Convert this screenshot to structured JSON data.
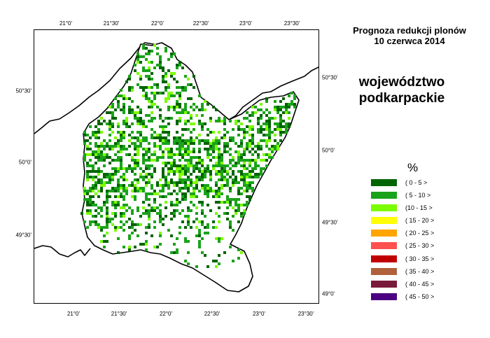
{
  "header": {
    "title_line1": "Prognoza redukcji plonów",
    "title_line2": "10 czerwca 2014"
  },
  "region_name_line1": "województwo",
  "region_name_line2": "podkarpackie",
  "axes": {
    "bottom_longitude": [
      "21°0'",
      "21°30'",
      "22°0'",
      "22°30'",
      "23°0'",
      "23°30'"
    ],
    "top_longitude": [
      "21°0'",
      "21°30'",
      "22°0'",
      "22°30'",
      "23°0'",
      "23°30'"
    ],
    "left_latitude": [
      "50°30'",
      "50°0'",
      "49°30'"
    ],
    "right_latitude": [
      "50°30'",
      "50°0'",
      "49°30'",
      "49°0'"
    ]
  },
  "legend": {
    "title": "%",
    "items": [
      {
        "label": "( 0 - 5 >",
        "color": "#006400"
      },
      {
        "label": "( 5 - 10 >",
        "color": "#1aa31a"
      },
      {
        "label": "(10 - 15 >",
        "color": "#7cfc00"
      },
      {
        "label": "( 15 - 20 >",
        "color": "#ffff00"
      },
      {
        "label": "( 20 - 25 >",
        "color": "#ffa500"
      },
      {
        "label": "( 25 - 30 >",
        "color": "#ff5050"
      },
      {
        "label": "( 30 - 35 >",
        "color": "#c00000"
      },
      {
        "label": "( 35 - 40 >",
        "color": "#b0603a"
      },
      {
        "label": "( 40 - 45 >",
        "color": "#7a1a3a"
      },
      {
        "label": "( 45 - 50 >",
        "color": "#4b0082"
      }
    ]
  }
}
